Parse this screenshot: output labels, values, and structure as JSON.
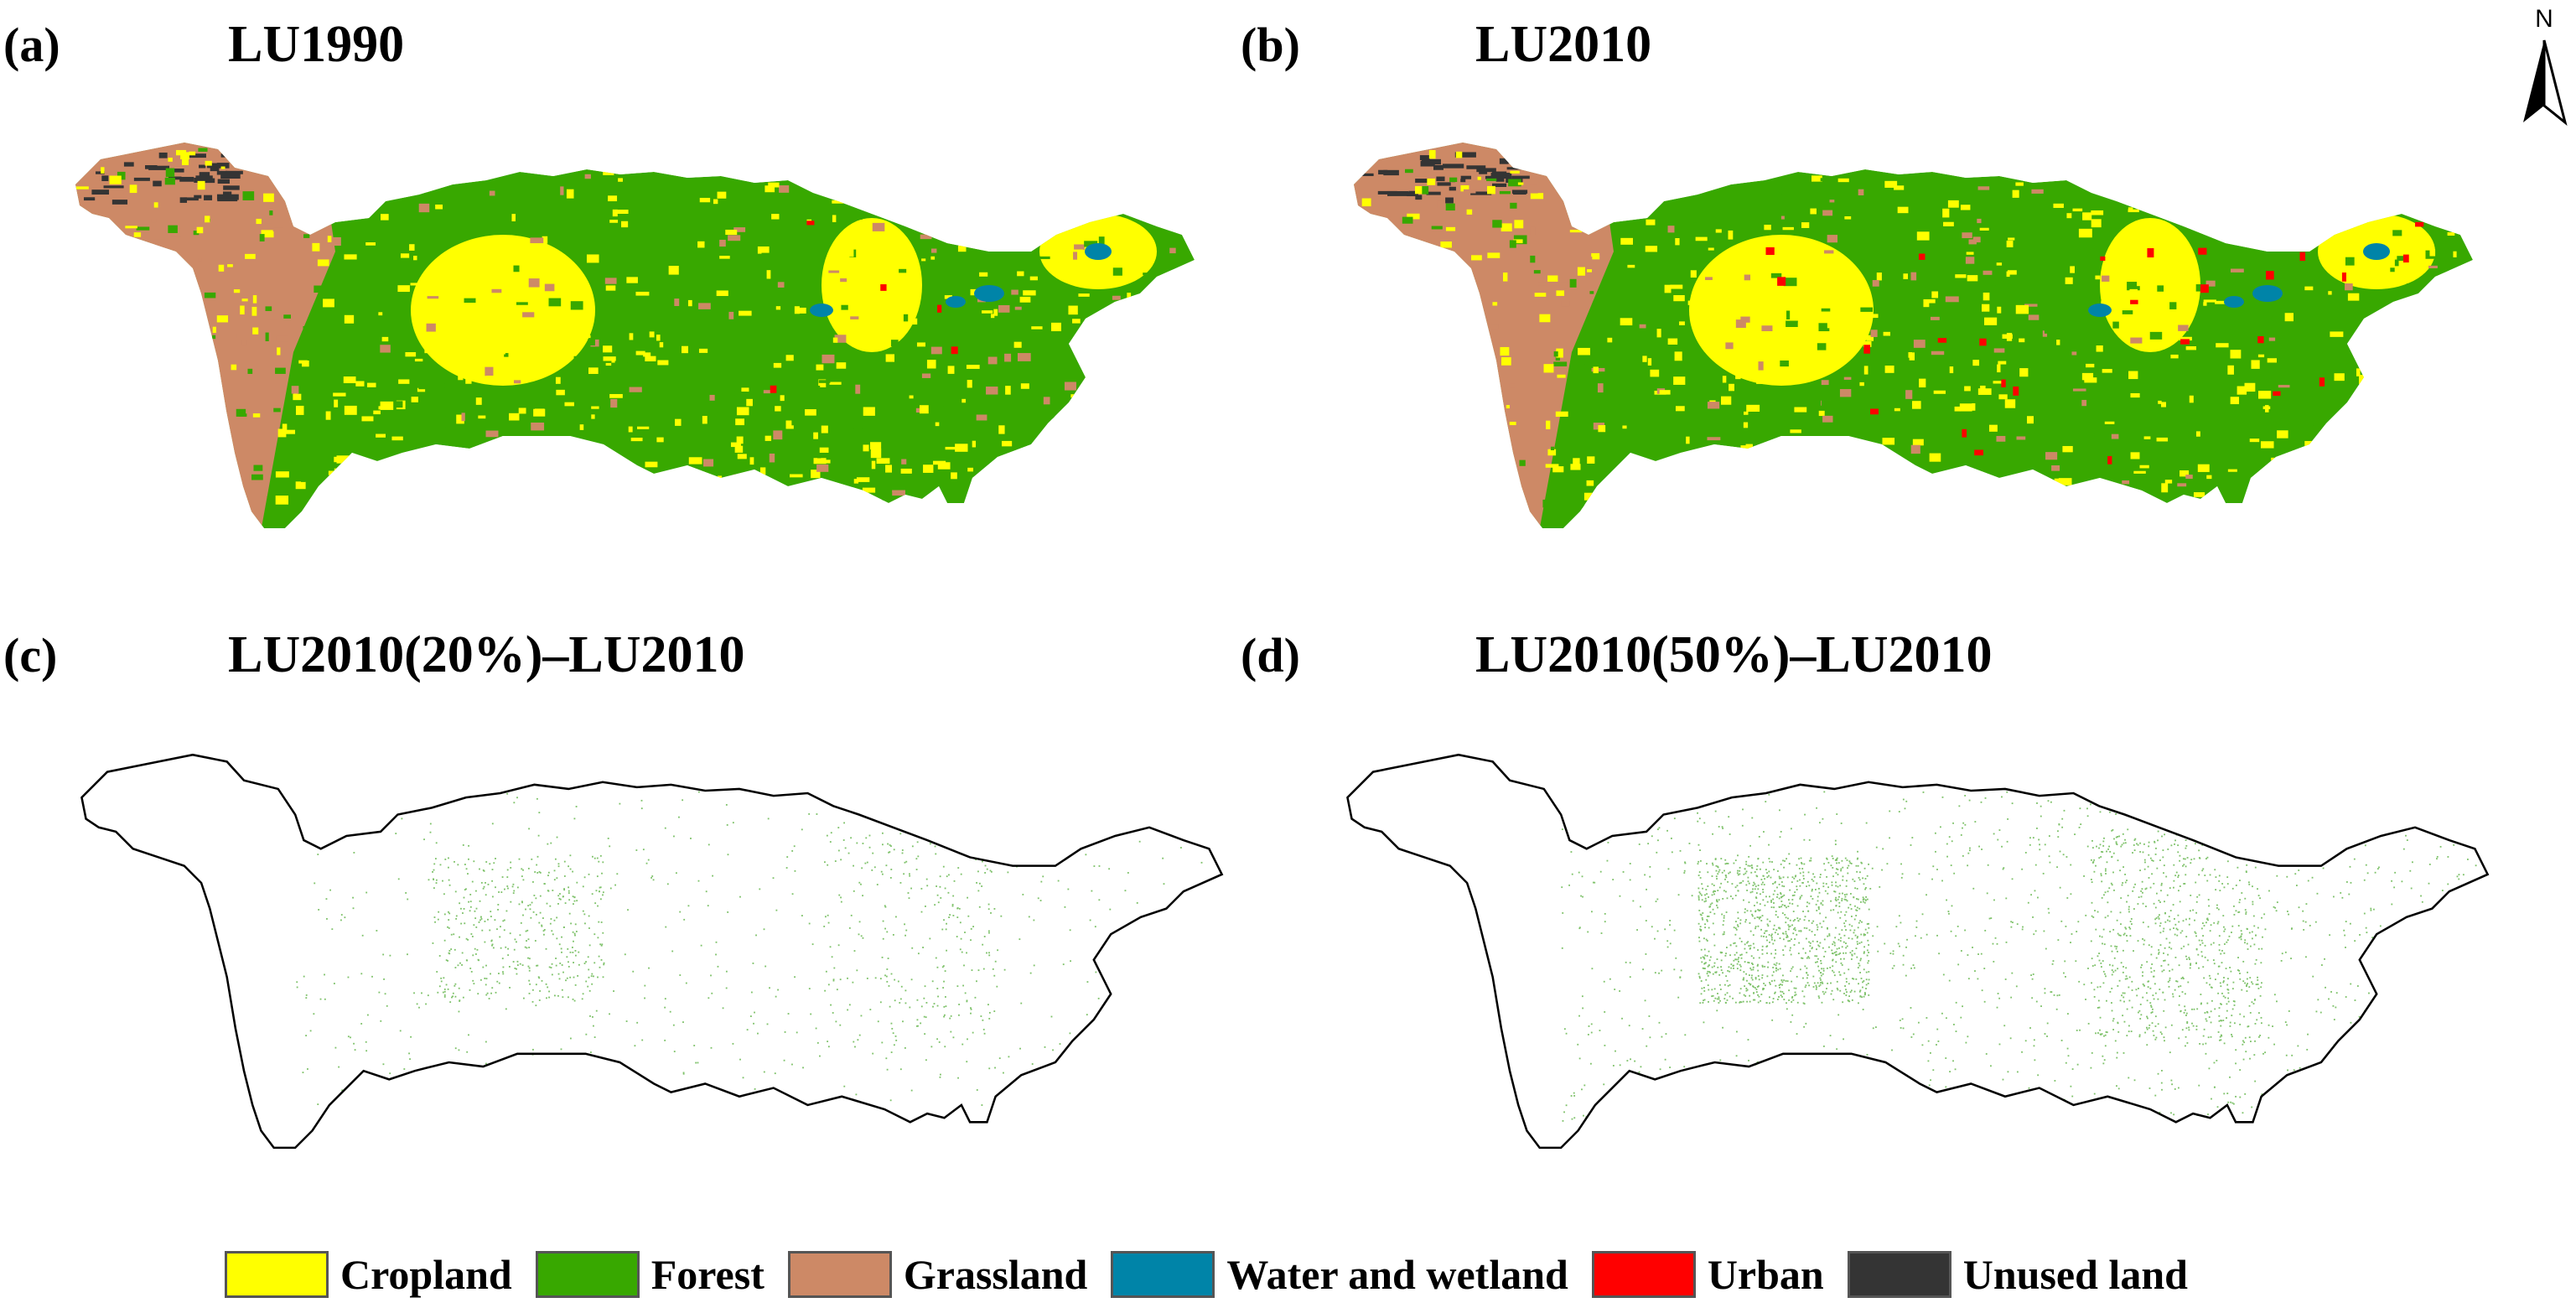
{
  "panels": [
    {
      "letter": "(a)",
      "title": "LU1990",
      "kind": "landuse",
      "urban": "low"
    },
    {
      "letter": "(b)",
      "title": "LU2010",
      "kind": "landuse",
      "urban": "high"
    },
    {
      "letter": "(c)",
      "title": "LU2010(20%)–LU2010",
      "kind": "diff",
      "density": 0.2
    },
    {
      "letter": "(d)",
      "title": "LU2010(50%)–LU2010",
      "kind": "diff",
      "density": 0.5
    }
  ],
  "north_arrow": {
    "label": "N"
  },
  "legend": [
    {
      "label": "Cropland",
      "color": "#ffff00"
    },
    {
      "label": "Forest",
      "color": "#38a800"
    },
    {
      "label": "Grassland",
      "color": "#cd8966"
    },
    {
      "label": "Water and wetland",
      "color": "#0084a8"
    },
    {
      "label": "Urban",
      "color": "#ff0000"
    },
    {
      "label": "Unused land",
      "color": "#343434"
    }
  ],
  "diff_color": "#7fc26b"
}
